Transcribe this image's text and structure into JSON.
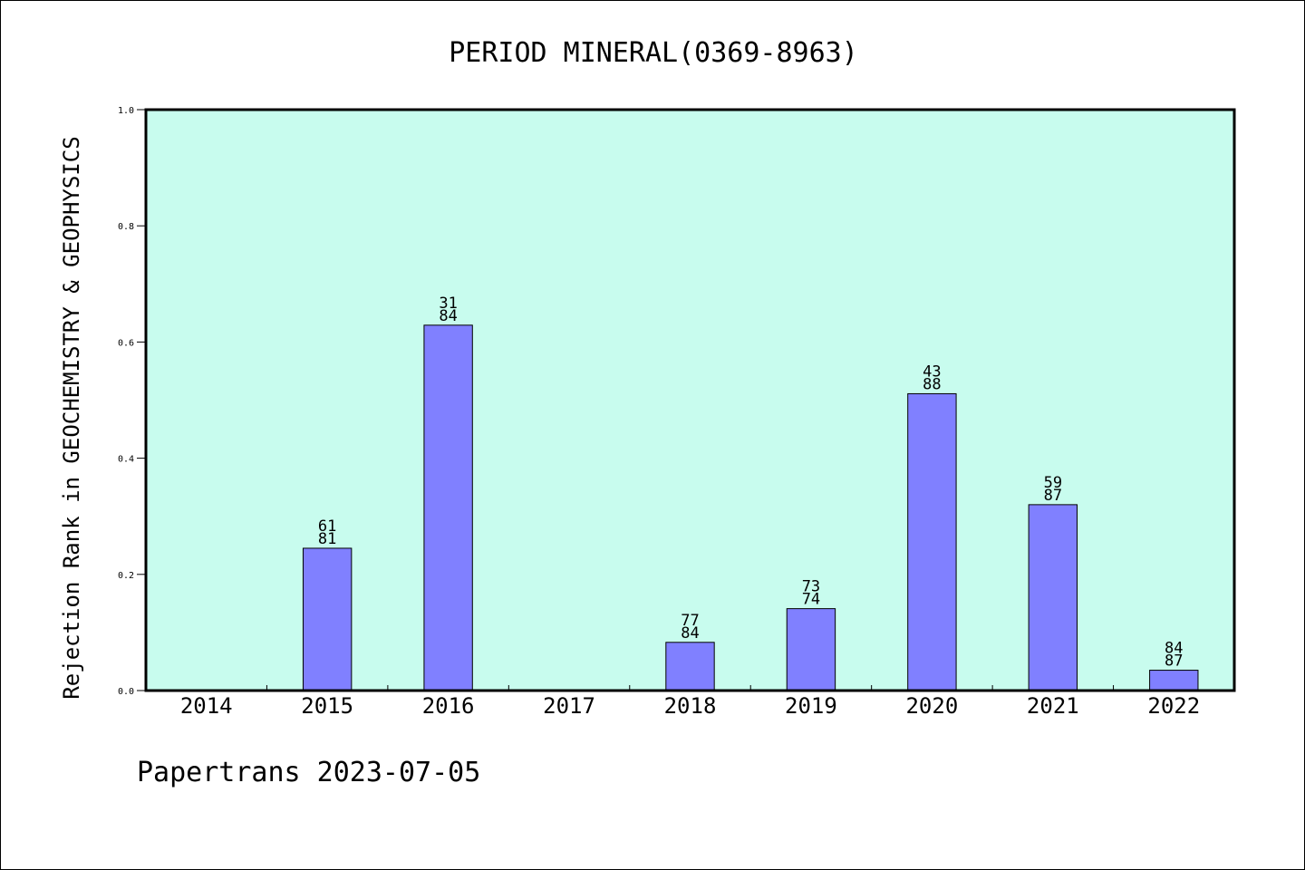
{
  "chart_data": {
    "type": "bar",
    "title": "PERIOD MINERAL(0369-8963)",
    "xlabel": "",
    "ylabel": "Rejection Rank in GEOCHEMISTRY & GEOPHYSICS",
    "categories": [
      "2014",
      "2015",
      "2016",
      "2017",
      "2018",
      "2019",
      "2020",
      "2021",
      "2022"
    ],
    "values": [
      0,
      0.245,
      0.629,
      0,
      0.083,
      0.141,
      0.511,
      0.32,
      0.035
    ],
    "bar_labels": [
      [
        "",
        ""
      ],
      [
        "61",
        "81"
      ],
      [
        "31",
        "84"
      ],
      [
        "",
        ""
      ],
      [
        "77",
        "84"
      ],
      [
        "73",
        "74"
      ],
      [
        "43",
        "88"
      ],
      [
        "59",
        "87"
      ],
      [
        "84",
        "87"
      ]
    ],
    "ylim": [
      0.0,
      1.0
    ],
    "yticks": [
      "0.0",
      "0.2",
      "0.4",
      "0.6",
      "0.8",
      "1.0"
    ],
    "grid": false,
    "colors": {
      "plot_background": "#c8fcee",
      "bar_fill": "#8080ff",
      "bar_edge": "#000000"
    }
  },
  "footer": {
    "text": "Papertrans 2023-07-05"
  }
}
